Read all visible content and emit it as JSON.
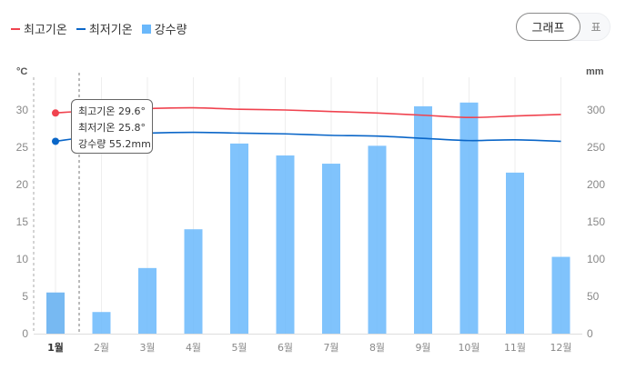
{
  "legend": [
    {
      "label": "최고기온",
      "color": "#f0434f",
      "shape": "line"
    },
    {
      "label": "최저기온",
      "color": "#0a66c8",
      "shape": "line"
    },
    {
      "label": "강수량",
      "color": "#6ab8fb",
      "shape": "square"
    }
  ],
  "view_toggle": {
    "graph_label": "그래프",
    "table_label": "표",
    "selected": "그래프"
  },
  "tooltip": {
    "high": "최고기온 29.6°",
    "low": "최저기온 25.8°",
    "rain": "강수량 55.2mm"
  },
  "axes": {
    "left_unit": "°C",
    "right_unit": "mm",
    "left_ticks": [
      "0",
      "5",
      "10",
      "15",
      "20",
      "25",
      "30"
    ],
    "right_ticks": [
      "0",
      "50",
      "100",
      "150",
      "200",
      "250",
      "300"
    ]
  },
  "chart_data": {
    "type": "bar+line",
    "categories": [
      "1월",
      "2월",
      "3월",
      "4월",
      "5월",
      "6월",
      "7월",
      "8월",
      "9월",
      "10월",
      "11월",
      "12월"
    ],
    "selected_category": "1월",
    "series": [
      {
        "name": "최고기온",
        "type": "line",
        "axis": "left",
        "unit": "°C",
        "color": "#f0434f",
        "values": [
          29.6,
          30.0,
          30.2,
          30.3,
          30.1,
          30.0,
          29.8,
          29.6,
          29.3,
          29.0,
          29.2,
          29.4
        ]
      },
      {
        "name": "최저기온",
        "type": "line",
        "axis": "left",
        "unit": "°C",
        "color": "#0a66c8",
        "values": [
          25.8,
          26.6,
          26.9,
          27.0,
          26.9,
          26.8,
          26.6,
          26.5,
          26.2,
          25.9,
          26.0,
          25.8
        ]
      },
      {
        "name": "강수량",
        "type": "bar",
        "axis": "right",
        "unit": "mm",
        "color": "#6ab8fb",
        "values": [
          55.2,
          29,
          88,
          140,
          255,
          239,
          228,
          252,
          305,
          310,
          216,
          103
        ]
      }
    ],
    "ylim_left": [
      0,
      30
    ],
    "ylim_right": [
      0,
      300
    ],
    "xlabel": "",
    "ylabel_left": "°C",
    "ylabel_right": "mm",
    "legend_position": "top-left",
    "grid": "vertical"
  }
}
